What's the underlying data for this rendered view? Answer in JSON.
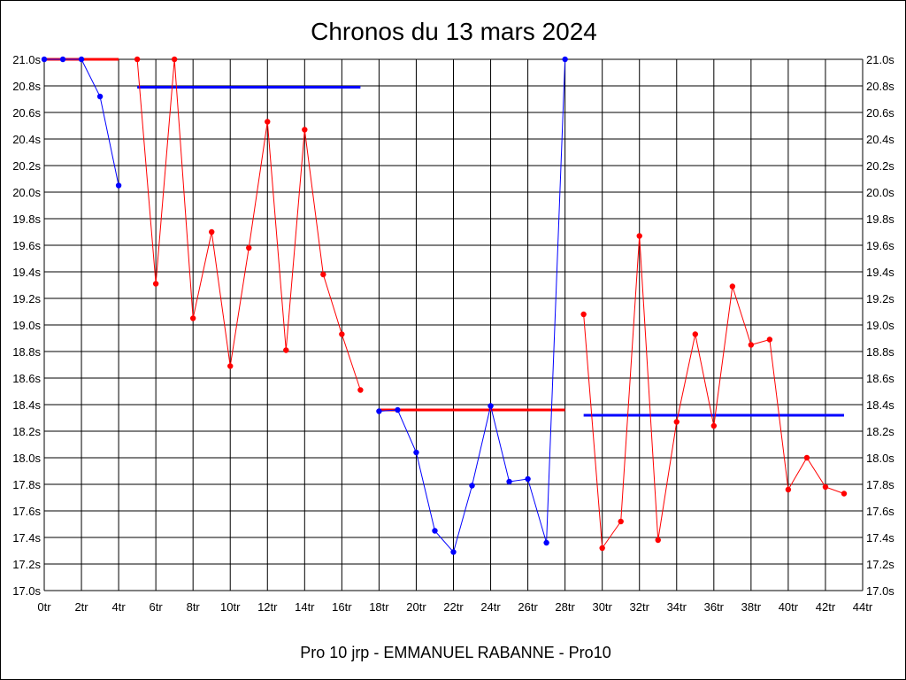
{
  "chart_data": {
    "type": "line",
    "title": "Chronos du 13 mars 2024",
    "xlabel": "Pro 10 jrp - EMMANUEL RABANNE - Pro10",
    "ylabel": "",
    "xlim": [
      0,
      44
    ],
    "ylim": [
      17.0,
      21.0
    ],
    "grid": true,
    "x_ticks": [
      "0tr",
      "2tr",
      "4tr",
      "6tr",
      "8tr",
      "10tr",
      "12tr",
      "14tr",
      "16tr",
      "18tr",
      "20tr",
      "22tr",
      "24tr",
      "26tr",
      "28tr",
      "30tr",
      "32tr",
      "34tr",
      "36tr",
      "38tr",
      "40tr",
      "42tr",
      "44tr"
    ],
    "y_ticks": [
      "21.0s",
      "20.8s",
      "20.6s",
      "20.4s",
      "20.2s",
      "20.0s",
      "19.8s",
      "19.6s",
      "19.4s",
      "19.2s",
      "19.0s",
      "18.8s",
      "18.6s",
      "18.4s",
      "18.2s",
      "18.0s",
      "17.8s",
      "17.6s",
      "17.4s",
      "17.2s",
      "17.0s"
    ],
    "colors": {
      "red": "#ff0000",
      "blue": "#0000ff"
    },
    "series": [
      {
        "color": "#0000ff",
        "points": [
          [
            0,
            21.0
          ],
          [
            1,
            21.0
          ],
          [
            2,
            21.0
          ],
          [
            3,
            20.72
          ],
          [
            4,
            20.05
          ]
        ]
      },
      {
        "color": "#ff0000",
        "points": [
          [
            5,
            21.0
          ],
          [
            6,
            19.31
          ],
          [
            7,
            21.0
          ],
          [
            8,
            19.05
          ],
          [
            9,
            19.7
          ],
          [
            10,
            18.69
          ],
          [
            11,
            19.58
          ],
          [
            12,
            20.53
          ],
          [
            13,
            18.81
          ],
          [
            14,
            20.47
          ],
          [
            15,
            19.38
          ],
          [
            16,
            18.93
          ],
          [
            17,
            18.51
          ]
        ]
      },
      {
        "color": "#0000ff",
        "points": [
          [
            18,
            18.35
          ],
          [
            19,
            18.36
          ],
          [
            20,
            18.04
          ],
          [
            21,
            17.45
          ],
          [
            22,
            17.29
          ],
          [
            23,
            17.79
          ],
          [
            24,
            18.39
          ],
          [
            25,
            17.82
          ],
          [
            26,
            17.84
          ],
          [
            27,
            17.36
          ],
          [
            28,
            21.0
          ]
        ]
      },
      {
        "color": "#ff0000",
        "points": [
          [
            29,
            19.08
          ],
          [
            30,
            17.32
          ],
          [
            31,
            17.52
          ],
          [
            32,
            19.67
          ],
          [
            33,
            17.38
          ],
          [
            34,
            18.27
          ],
          [
            35,
            18.93
          ],
          [
            36,
            18.24
          ],
          [
            37,
            19.29
          ],
          [
            38,
            18.85
          ],
          [
            39,
            18.89
          ],
          [
            40,
            17.76
          ],
          [
            41,
            18.0
          ],
          [
            42,
            17.78
          ],
          [
            43,
            17.73
          ]
        ]
      }
    ],
    "average_lines": [
      {
        "color": "#ff0000",
        "x": [
          0,
          4
        ],
        "y": 21.0
      },
      {
        "color": "#0000ff",
        "x": [
          5,
          17
        ],
        "y": 20.79
      },
      {
        "color": "#ff0000",
        "x": [
          18,
          28
        ],
        "y": 18.36
      },
      {
        "color": "#0000ff",
        "x": [
          29,
          43
        ],
        "y": 18.32
      }
    ]
  }
}
